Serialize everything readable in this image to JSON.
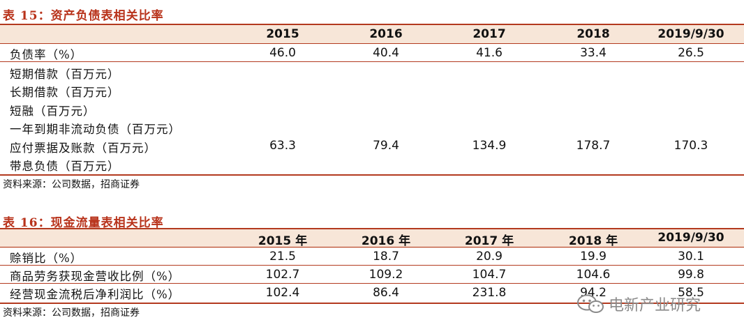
{
  "table15": {
    "title": "表 15：资产负债表相关比率",
    "headers": [
      "2015",
      "2016",
      "2017",
      "2018",
      "2019/9/30"
    ],
    "rows": [
      {
        "label": "负债率（%）",
        "values": [
          "46.0",
          "40.4",
          "41.6",
          "33.4",
          "26.5"
        ]
      },
      {
        "label": "短期借款（百万元）",
        "values": []
      },
      {
        "label": "长期借款（百万元）",
        "values": []
      },
      {
        "label": "短融（百万元）",
        "values": []
      },
      {
        "label": "一年到期非流动负债（百万元）",
        "values": []
      },
      {
        "label": "应付票据及账款（百万元）",
        "values": [
          "63.3",
          "79.4",
          "134.9",
          "178.7",
          "170.3"
        ]
      },
      {
        "label": "带息负债（百万元）",
        "values": []
      }
    ],
    "source": "资料来源：公司数据，招商证券"
  },
  "table16": {
    "title": "表 16：现金流量表相关比率",
    "headers": [
      "2015 年",
      "2016 年",
      "2017 年",
      "2018 年",
      "2019/9/30"
    ],
    "rows": [
      {
        "label": "赊销比（%）",
        "values": [
          "21.5",
          "18.7",
          "20.9",
          "19.9",
          "30.1"
        ]
      },
      {
        "label": "商品劳务获现金营收比例（%）",
        "values": [
          "102.7",
          "109.2",
          "104.7",
          "104.6",
          "99.8"
        ]
      },
      {
        "label": "经营现金流税后净利润比（%）",
        "values": [
          "102.4",
          "86.4",
          "231.8",
          "94.2",
          "58.5"
        ]
      }
    ],
    "source": "资料来源：公司数据，招商证券"
  },
  "watermark": {
    "text": "电新产业研究",
    "icon": "wechat-icon"
  }
}
